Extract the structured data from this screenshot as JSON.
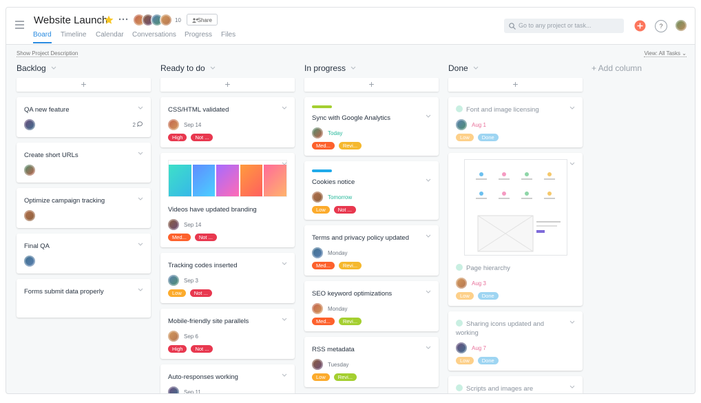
{
  "header": {
    "title": "Website Launch",
    "member_count": "10",
    "share": "Share",
    "tabs": [
      "Board",
      "Timeline",
      "Calendar",
      "Conversations",
      "Progress",
      "Files"
    ],
    "active_tab": 0,
    "search_placeholder": "Go to any project or task...",
    "help": "?"
  },
  "toolbar": {
    "show_description": "Show Project Description",
    "view": "View: All Tasks"
  },
  "add_column": "+ Add column",
  "columns": [
    {
      "title": "Backlog",
      "cards": [
        {
          "title": "QA new feature",
          "assigned": true,
          "comments": "2"
        },
        {
          "title": "Create short URLs",
          "assigned": true
        },
        {
          "title": "Optimize campaign tracking",
          "assigned": true
        },
        {
          "title": "Final QA",
          "assigned": true
        },
        {
          "title": "Forms submit data properly"
        }
      ]
    },
    {
      "title": "Ready to do",
      "cards": [
        {
          "title": "CSS/HTML validated",
          "assigned": true,
          "date": "Sep 14",
          "tags": [
            {
              "label": "High",
              "color": "#e8384f"
            },
            {
              "label": "Not ...",
              "color": "#e8384f"
            }
          ]
        },
        {
          "title": "Videos have updated branding",
          "image": "gradients",
          "assigned": true,
          "date": "Sep 14",
          "tags": [
            {
              "label": "Med...",
              "color": "#fd612c"
            },
            {
              "label": "Not ...",
              "color": "#e8384f"
            }
          ]
        },
        {
          "title": "Tracking codes inserted",
          "assigned": true,
          "date": "Sep 3",
          "tags": [
            {
              "label": "Low",
              "color": "#fcab2c"
            },
            {
              "label": "Not ...",
              "color": "#e8384f"
            }
          ]
        },
        {
          "title": "Mobile-friendly site parallels",
          "assigned": true,
          "date": "Sep 6",
          "tags": [
            {
              "label": "High",
              "color": "#e8384f"
            },
            {
              "label": "Not ...",
              "color": "#e8384f"
            }
          ]
        },
        {
          "title": "Auto-responses working",
          "assigned": true,
          "date": "Sep 11"
        }
      ]
    },
    {
      "title": "In progress",
      "cards": [
        {
          "title": "Sync with Google Analytics",
          "bar": "#a4cf30",
          "assigned": true,
          "date": "Today",
          "date_color": "#25b89a",
          "tags": [
            {
              "label": "Med...",
              "color": "#fd612c"
            },
            {
              "label": "Revi...",
              "color": "#f5b82e"
            }
          ]
        },
        {
          "title": "Cookies notice",
          "bar": "#20aaea",
          "assigned": true,
          "date": "Tomorrow",
          "date_color": "#25b89a",
          "tags": [
            {
              "label": "Low",
              "color": "#fcab2c"
            },
            {
              "label": "Not ...",
              "color": "#e8384f"
            }
          ]
        },
        {
          "title": "Terms and privacy policy updated",
          "assigned": true,
          "date": "Monday",
          "tags": [
            {
              "label": "Med...",
              "color": "#fd612c"
            },
            {
              "label": "Revi...",
              "color": "#f5b82e"
            }
          ]
        },
        {
          "title": "SEO keyword optimizations",
          "assigned": true,
          "date": "Monday",
          "tags": [
            {
              "label": "Med...",
              "color": "#fd612c"
            },
            {
              "label": "Revi...",
              "color": "#a4cf30"
            }
          ]
        },
        {
          "title": "RSS metadata",
          "assigned": true,
          "date": "Tuesday",
          "tags": [
            {
              "label": "Low",
              "color": "#fcab2c"
            },
            {
              "label": "Revi...",
              "color": "#a4cf30"
            }
          ]
        }
      ]
    },
    {
      "title": "Done",
      "cards": [
        {
          "title": "Font and image licensing",
          "done": true,
          "assigned": true,
          "date": "Aug 1",
          "date_color": "#e8709a",
          "tags": [
            {
              "label": "Low",
              "color": "#fcab2c"
            },
            {
              "label": "Done",
              "color": "#4fb3e8"
            }
          ]
        },
        {
          "title": "Page hierarchy",
          "done": true,
          "image": "wireframe",
          "assigned": true,
          "date": "Aug 3",
          "date_color": "#e8709a",
          "tags": [
            {
              "label": "Low",
              "color": "#fcab2c"
            },
            {
              "label": "Done",
              "color": "#4fb3e8"
            }
          ]
        },
        {
          "title": "Sharing icons updated and working",
          "done": true,
          "assigned": true,
          "date": "Aug 7",
          "date_color": "#e8709a",
          "tags": [
            {
              "label": "Low",
              "color": "#fcab2c"
            },
            {
              "label": "Done",
              "color": "#4fb3e8"
            }
          ]
        },
        {
          "title": "Scripts and images are",
          "done": true
        }
      ]
    }
  ]
}
